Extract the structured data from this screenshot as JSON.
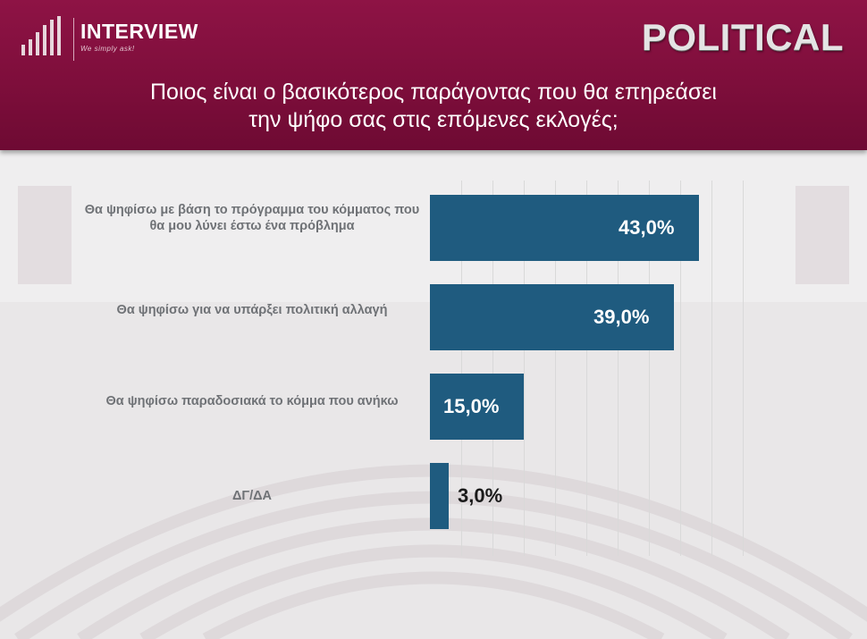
{
  "header": {
    "logo_word": "INTERVIEW",
    "logo_tagline": "We simply ask!",
    "brand_right": "POLITICAL",
    "question_line1": "Ποιος είναι ο βασικότερος παράγοντας που θα επηρεάσει",
    "question_line2": "την ψήφο σας στις επόμενες εκλογές;"
  },
  "colors": {
    "header_bg": "#7e0e3b",
    "bar": "#1f5b7f",
    "label_text": "#6f7276"
  },
  "chart_data": {
    "type": "bar",
    "orientation": "horizontal",
    "title": "Ποιος είναι ο βασικότερος παράγοντας που θα επηρεάσει την ψήφο σας στις επόμενες εκλογές;",
    "categories": [
      "Θα ψηφίσω με βάση το πρόγραμμα του κόμματος που θα μου λύνει έστω ένα πρόβλημα",
      "Θα ψηφίσω για να υπάρξει πολιτική αλλαγή",
      "Θα ψηφίσω παραδοσιακά το κόμμα που ανήκω",
      "ΔΓ/ΔΑ"
    ],
    "values": [
      43.0,
      39.0,
      15.0,
      3.0
    ],
    "data_labels": [
      "43,0%",
      "39,0%",
      "15,0%",
      "3,0%"
    ],
    "xlim": [
      0,
      50
    ],
    "grid": true,
    "legend": "none"
  }
}
